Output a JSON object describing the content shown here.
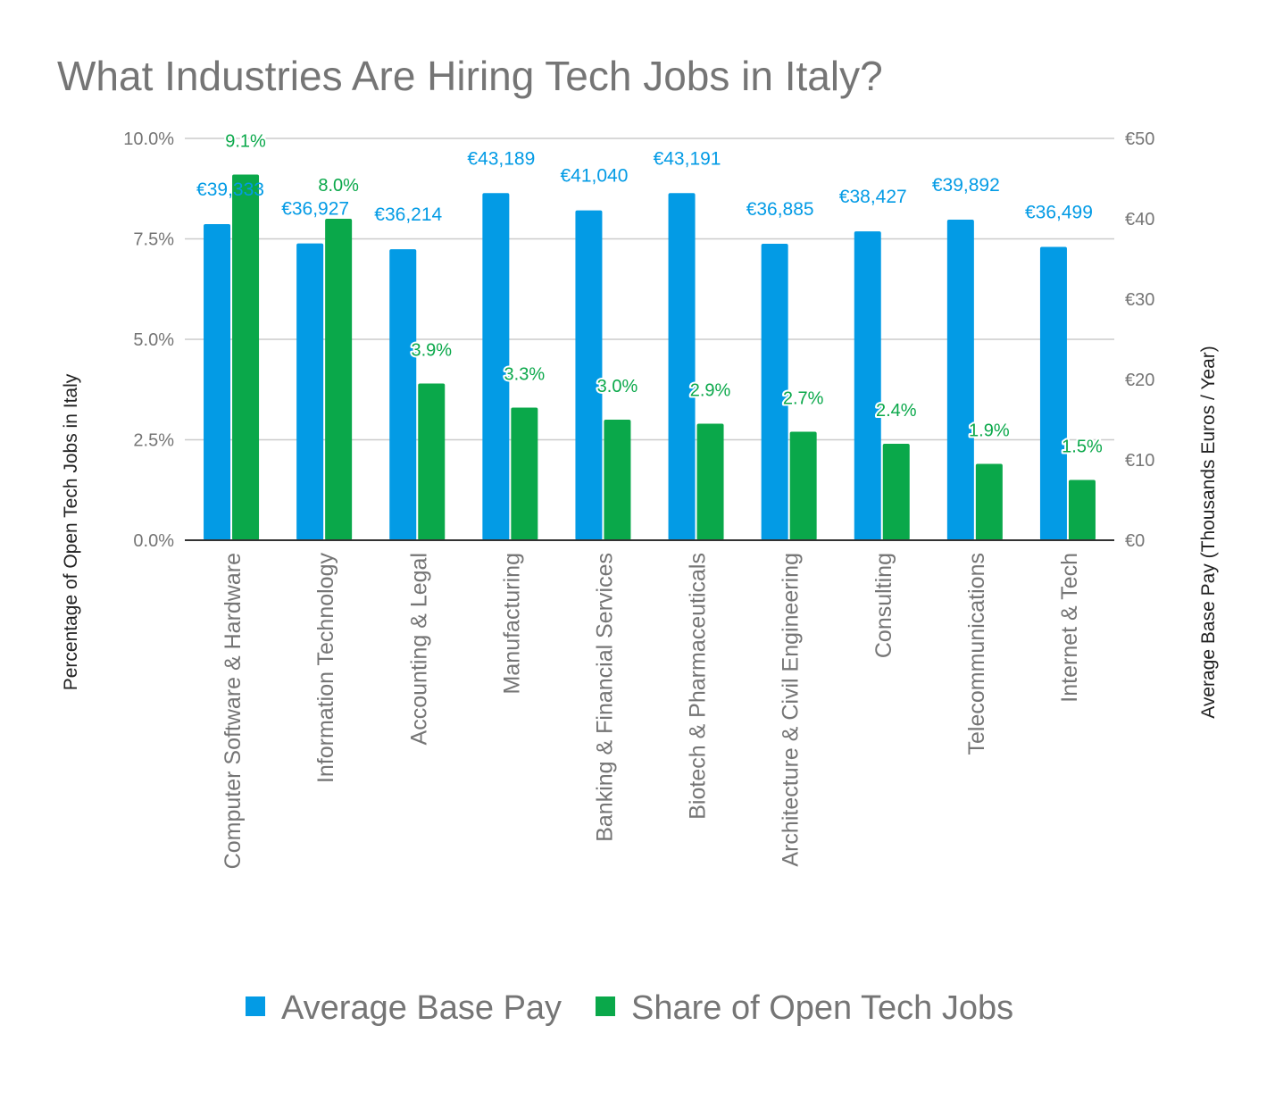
{
  "chart_data": {
    "type": "bar",
    "title": "What Industries Are Hiring Tech Jobs in Italy?",
    "categories": [
      "Computer Software & Hardware",
      "Information Technology",
      "Accounting & Legal",
      "Manufacturing",
      "Banking & Financial Services",
      "Biotech & Pharmaceuticals",
      "Architecture & Civil Engineering",
      "Consulting",
      "Telecommunications",
      "Internet & Tech"
    ],
    "series": [
      {
        "name": "Average Base Pay",
        "axis": "right",
        "color": "#039be5",
        "values": [
          39333,
          36927,
          36214,
          43189,
          41040,
          43191,
          36885,
          38427,
          39892,
          36499
        ],
        "labels": [
          "€39,333",
          "€36,927",
          "€36,214",
          "€43,189",
          "€41,040",
          "€43,191",
          "€36,885",
          "€38,427",
          "€39,892",
          "€36,499"
        ]
      },
      {
        "name": "Share of Open Tech Jobs",
        "axis": "left",
        "color": "#0aa84a",
        "values": [
          9.1,
          8.0,
          3.9,
          3.3,
          3.0,
          2.9,
          2.7,
          2.4,
          1.9,
          1.5
        ],
        "labels": [
          "9.1%",
          "8.0%",
          "3.9%",
          "3.3%",
          "3.0%",
          "2.9%",
          "2.7%",
          "2.4%",
          "1.9%",
          "1.5%"
        ]
      }
    ],
    "y_left": {
      "label": "Percentage of Open Tech Jobs in Italy",
      "ylim": [
        0,
        10
      ],
      "ticks": [
        "0.0%",
        "2.5%",
        "5.0%",
        "7.5%",
        "10.0%"
      ]
    },
    "y_right": {
      "label": "Average Base Pay (Thousands Euros / Year)",
      "ylim": [
        0,
        50
      ],
      "ticks": [
        "€0",
        "€10",
        "€20",
        "€30",
        "€40",
        "€50"
      ]
    },
    "grid": true,
    "legend": {
      "position": "bottom",
      "items": [
        "Average Base Pay",
        "Share of Open Tech Jobs"
      ]
    }
  }
}
